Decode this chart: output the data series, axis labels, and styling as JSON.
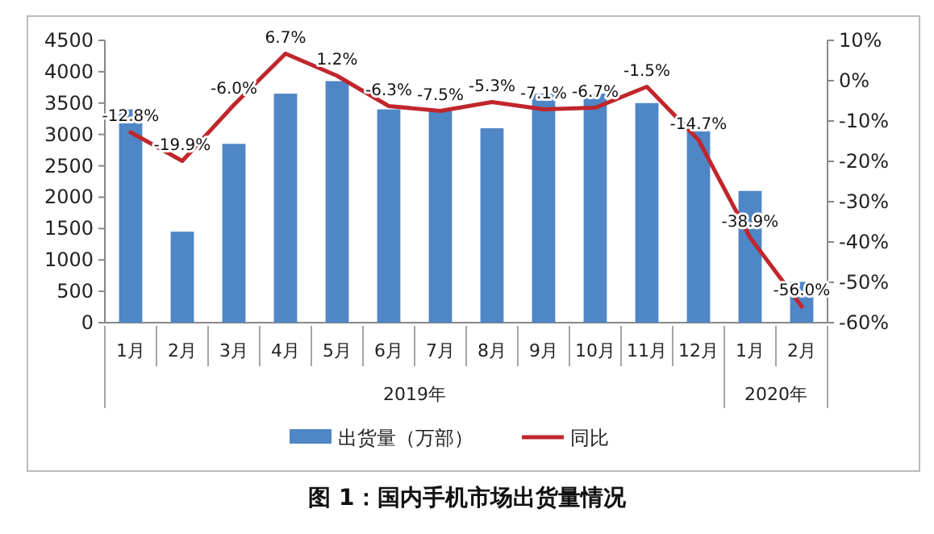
{
  "chart_data": {
    "type": "bar",
    "title": "图 1：国内手机市场出货量情况",
    "categories": [
      "1月",
      "2月",
      "3月",
      "4月",
      "5月",
      "6月",
      "7月",
      "8月",
      "9月",
      "10月",
      "11月",
      "12月",
      "1月",
      "2月"
    ],
    "annotations": [
      "2019年",
      "2020年"
    ],
    "series": [
      {
        "name": "出货量（万部）",
        "color": "#4f86c6",
        "values": [
          3400,
          1450,
          2850,
          3650,
          3850,
          3400,
          3400,
          3100,
          3650,
          3650,
          3500,
          3050,
          2100,
          650
        ]
      },
      {
        "name": "同比",
        "type": "line",
        "axis": "y2",
        "color": "#c0262c",
        "values": [
          -12.8,
          -19.9,
          -6.0,
          6.7,
          1.2,
          -6.3,
          -7.5,
          -5.3,
          -7.1,
          -6.7,
          -1.5,
          -14.7,
          -38.9,
          -56.0
        ],
        "value_labels": [
          "-12.8%",
          "-19.9%",
          "-6.0%",
          "6.7%",
          "1.2%",
          "-6.3%",
          "-7.5%",
          "-5.3%",
          "-7.1%",
          "-6.7%",
          "-1.5%",
          "-14.7%",
          "-38.9%",
          "-56.0%"
        ]
      }
    ],
    "ylim": [
      0,
      4500
    ],
    "yticks": [
      0,
      500,
      1000,
      1500,
      2000,
      2500,
      3000,
      3500,
      4000,
      4500
    ],
    "y2lim": [
      -60,
      10
    ],
    "y2ticks": [
      {
        "value": -60,
        "label": "-60%"
      },
      {
        "value": -50,
        "label": "-50%"
      },
      {
        "value": -40,
        "label": "-40%"
      },
      {
        "value": -30,
        "label": "-30%"
      },
      {
        "value": -20,
        "label": "-20%"
      },
      {
        "value": -10,
        "label": "-10%"
      },
      {
        "value": 0,
        "label": "0%"
      },
      {
        "value": 10,
        "label": "10%"
      }
    ],
    "grid": false,
    "legend": "bottom"
  }
}
